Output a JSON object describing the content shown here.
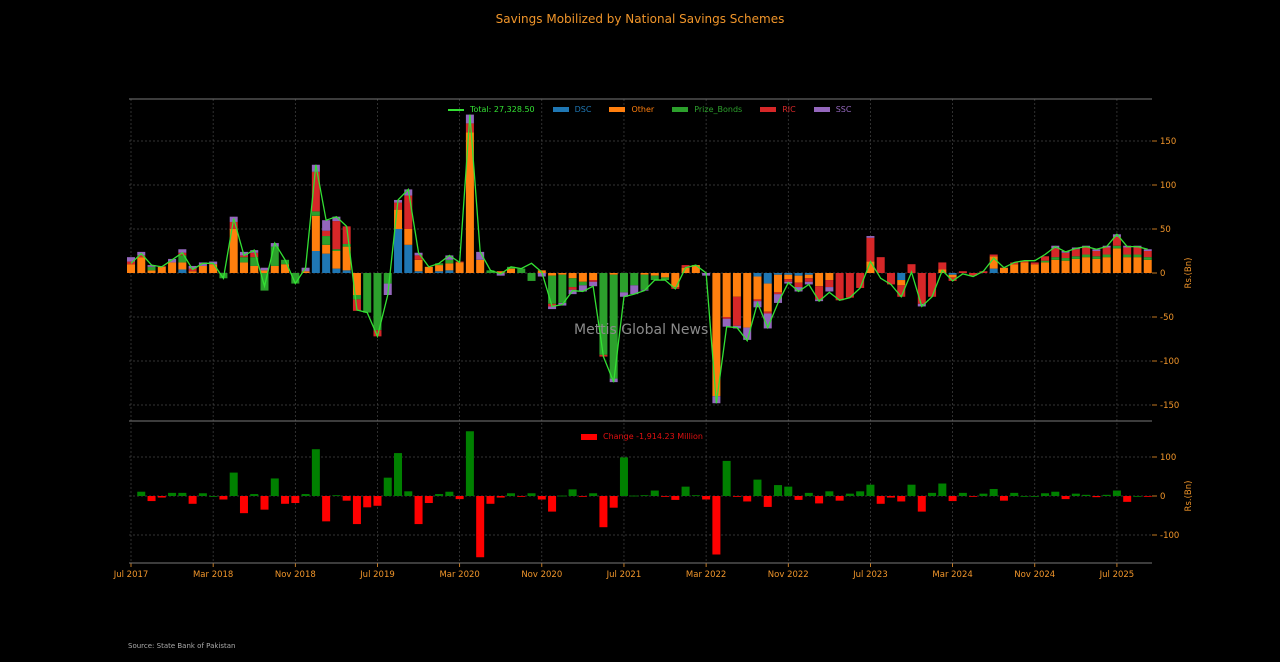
{
  "title": "Savings Mobilized by National Savings Schemes",
  "source": "Source: State Bank of Pakistan",
  "watermark": "Mettis Global News",
  "chart_data": [
    {
      "type": "bar",
      "stacked": true,
      "ylabel": "Rs.(Bn)",
      "ylim": [
        -160,
        195
      ],
      "yticks": [
        -150,
        -100,
        -50,
        0,
        50,
        100,
        150
      ],
      "grid": true,
      "legend": "top-center",
      "months": [
        "2017-07",
        "2017-08",
        "2017-09",
        "2017-10",
        "2017-11",
        "2017-12",
        "2018-01",
        "2018-02",
        "2018-03",
        "2018-04",
        "2018-05",
        "2018-06",
        "2018-07",
        "2018-08",
        "2018-09",
        "2018-10",
        "2018-11",
        "2018-12",
        "2019-01",
        "2019-02",
        "2019-03",
        "2019-04",
        "2019-05",
        "2019-06",
        "2019-07",
        "2019-08",
        "2019-09",
        "2019-10",
        "2019-11",
        "2019-12",
        "2020-01",
        "2020-02",
        "2020-03",
        "2020-04",
        "2020-05",
        "2020-06",
        "2020-07",
        "2020-08",
        "2020-09",
        "2020-10",
        "2020-11",
        "2020-12",
        "2021-01",
        "2021-02",
        "2021-03",
        "2021-04",
        "2021-05",
        "2021-06",
        "2021-07",
        "2021-08",
        "2021-09",
        "2021-10",
        "2021-11",
        "2021-12",
        "2022-01",
        "2022-02",
        "2022-03",
        "2022-04",
        "2022-05",
        "2022-06",
        "2022-07",
        "2022-08",
        "2022-09",
        "2022-10",
        "2022-11",
        "2022-12",
        "2023-01",
        "2023-02",
        "2023-03",
        "2023-04",
        "2023-05",
        "2023-06",
        "2023-07",
        "2023-08",
        "2023-09",
        "2023-10",
        "2023-11",
        "2023-12",
        "2024-01",
        "2024-02",
        "2024-03",
        "2024-04",
        "2024-05",
        "2024-06",
        "2024-07",
        "2024-08",
        "2024-09",
        "2024-10",
        "2024-11",
        "2024-12",
        "2025-01",
        "2025-02",
        "2025-03",
        "2025-04",
        "2025-05",
        "2025-06",
        "2025-07",
        "2025-08",
        "2025-09",
        "2025-10"
      ],
      "xticks": [
        {
          "month_index": 0,
          "label": "Jul 2017"
        },
        {
          "month_index": 8,
          "label": "Mar 2018"
        },
        {
          "month_index": 16,
          "label": "Nov 2018"
        },
        {
          "month_index": 24,
          "label": "Jul 2019"
        },
        {
          "month_index": 32,
          "label": "Mar 2020"
        },
        {
          "month_index": 40,
          "label": "Nov 2020"
        },
        {
          "month_index": 48,
          "label": "Jul 2021"
        },
        {
          "month_index": 56,
          "label": "Mar 2022"
        },
        {
          "month_index": 64,
          "label": "Nov 2022"
        },
        {
          "month_index": 72,
          "label": "Jul 2023"
        },
        {
          "month_index": 80,
          "label": "Mar 2024"
        },
        {
          "month_index": 88,
          "label": "Nov 2024"
        },
        {
          "month_index": 96,
          "label": "Jul 2025"
        }
      ],
      "total": {
        "legend_label": "Total: 27,328.50",
        "color": "#33e033",
        "values": [
          11,
          22,
          9,
          7,
          15,
          23,
          4,
          11,
          11,
          -6,
          62,
          20,
          26,
          -15,
          34,
          15,
          -12,
          6,
          123,
          60,
          64,
          53,
          -42,
          -45,
          -72,
          -25,
          83,
          95,
          23,
          7,
          11,
          20,
          12,
          180,
          24,
          3,
          -1,
          7,
          5,
          11,
          1,
          -38,
          -36,
          -20,
          -21,
          -15,
          -95,
          -124,
          -27,
          -24,
          -20,
          -8,
          -8,
          -18,
          6,
          9,
          0,
          -148,
          -61,
          -62,
          -77,
          -34,
          -62,
          -34,
          -11,
          -21,
          -13,
          -32,
          -22,
          -31,
          -28,
          -17,
          13,
          -6,
          -13,
          -27,
          1,
          -38,
          -27,
          3,
          -9,
          -1,
          -4,
          2,
          17,
          6,
          12,
          14,
          14,
          21,
          30,
          24,
          28,
          30,
          27,
          30,
          44,
          30,
          30,
          27
        ]
      },
      "series": [
        {
          "name": "DSC",
          "color": "#1f77b4",
          "values": [
            0,
            0,
            0,
            0,
            0,
            4,
            0,
            0,
            0,
            0,
            0,
            0,
            0,
            0,
            0,
            0,
            0,
            0,
            25,
            22,
            5,
            3,
            0,
            0,
            0,
            0,
            50,
            32,
            2,
            0,
            2,
            3,
            0,
            0,
            0,
            0,
            0,
            0,
            0,
            0,
            0,
            0,
            0,
            0,
            0,
            0,
            0,
            0,
            0,
            0,
            0,
            0,
            0,
            0,
            0,
            0,
            0,
            0,
            0,
            0,
            0,
            -4,
            -12,
            -2,
            -2,
            -3,
            -2,
            0,
            0,
            0,
            0,
            0,
            0,
            0,
            0,
            -8,
            0,
            0,
            0,
            0,
            -2,
            0,
            0,
            0,
            5,
            0,
            0,
            0,
            0,
            0,
            0,
            0,
            0,
            0,
            0,
            0,
            0,
            0,
            0,
            0
          ]
        },
        {
          "name": "Other",
          "color": "#ff7f0e",
          "values": [
            10,
            18,
            3,
            7,
            12,
            8,
            2,
            8,
            10,
            0,
            50,
            12,
            8,
            3,
            8,
            10,
            0,
            2,
            40,
            10,
            20,
            27,
            -25,
            0,
            0,
            0,
            22,
            18,
            13,
            7,
            7,
            8,
            12,
            160,
            15,
            0,
            2,
            5,
            0,
            0,
            3,
            -3,
            -2,
            -6,
            -10,
            -8,
            0,
            -2,
            0,
            0,
            -2,
            -3,
            -5,
            -16,
            6,
            9,
            0,
            -140,
            -50,
            -27,
            -62,
            -26,
            -32,
            -20,
            -5,
            -8,
            -4,
            -15,
            -8,
            0,
            0,
            0,
            13,
            0,
            0,
            -6,
            0,
            0,
            0,
            4,
            -3,
            0,
            0,
            0,
            14,
            6,
            10,
            12,
            10,
            12,
            15,
            14,
            16,
            18,
            16,
            18,
            28,
            18,
            18,
            15
          ]
        },
        {
          "name": "Prize_Bonds",
          "color": "#2ca02c",
          "values": [
            0,
            0,
            4,
            0,
            0,
            8,
            0,
            0,
            0,
            -6,
            0,
            6,
            10,
            -20,
            22,
            5,
            -12,
            0,
            5,
            10,
            2,
            3,
            -5,
            -45,
            -65,
            -12,
            0,
            0,
            0,
            0,
            2,
            4,
            0,
            0,
            0,
            3,
            0,
            2,
            5,
            -9,
            0,
            -32,
            -32,
            -10,
            -4,
            0,
            -93,
            -118,
            -22,
            -14,
            -17,
            -5,
            -3,
            0,
            0,
            0,
            0,
            0,
            0,
            0,
            0,
            0,
            0,
            0,
            0,
            0,
            0,
            0,
            0,
            0,
            0,
            0,
            0,
            0,
            0,
            0,
            0,
            0,
            0,
            0,
            0,
            0,
            0,
            0,
            0,
            0,
            0,
            0,
            0,
            2,
            3,
            3,
            3,
            3,
            3,
            3,
            3,
            3,
            3,
            3
          ]
        },
        {
          "name": "RIC",
          "color": "#d62728",
          "values": [
            3,
            2,
            0,
            1,
            0,
            3,
            3,
            0,
            0,
            0,
            8,
            2,
            5,
            0,
            0,
            0,
            0,
            0,
            45,
            6,
            32,
            20,
            -13,
            0,
            -7,
            0,
            8,
            38,
            5,
            0,
            0,
            0,
            1,
            10,
            0,
            0,
            0,
            0,
            0,
            0,
            0,
            -3,
            0,
            -3,
            0,
            -2,
            -2,
            0,
            0,
            0,
            0,
            0,
            0,
            -2,
            3,
            0,
            0,
            0,
            -2,
            -33,
            0,
            -2,
            -2,
            -2,
            -3,
            -5,
            -4,
            -15,
            -8,
            -31,
            -28,
            -17,
            27,
            18,
            -13,
            -13,
            10,
            -35,
            -27,
            8,
            -4,
            2,
            -3,
            2,
            2,
            0,
            2,
            2,
            2,
            5,
            10,
            6,
            8,
            8,
            6,
            8,
            10,
            8,
            8,
            7
          ]
        },
        {
          "name": "SSC",
          "color": "#9467bd",
          "values": [
            5,
            4,
            2,
            0,
            4,
            4,
            3,
            4,
            3,
            0,
            6,
            4,
            3,
            3,
            4,
            0,
            0,
            4,
            8,
            12,
            5,
            0,
            0,
            0,
            0,
            -13,
            3,
            7,
            3,
            0,
            0,
            5,
            0,
            10,
            9,
            0,
            -3,
            0,
            0,
            0,
            -4,
            -3,
            -3,
            -5,
            -7,
            -5,
            0,
            -4,
            -5,
            -10,
            -1,
            0,
            0,
            0,
            0,
            0,
            -3,
            -8,
            -9,
            -3,
            -14,
            -7,
            -17,
            -10,
            -2,
            -5,
            -3,
            -2,
            -5,
            0,
            0,
            0,
            2,
            0,
            0,
            0,
            0,
            -3,
            0,
            0,
            0,
            0,
            0,
            0,
            0,
            0,
            0,
            0,
            0,
            0,
            3,
            2,
            2,
            2,
            2,
            2,
            3,
            2,
            2,
            2
          ]
        }
      ]
    },
    {
      "type": "bar",
      "ylabel": "Rs.(Bn)",
      "ylim": [
        -175,
        190
      ],
      "yticks": [
        -100,
        0,
        100
      ],
      "grid": true,
      "legend": "top-center",
      "series_name": "Change -1,914.23 Million",
      "positive_color": "#008000",
      "negative_color": "#ff0000",
      "values": [
        null,
        11,
        -13,
        -4,
        8,
        8,
        -20,
        7,
        0,
        -9,
        60,
        -44,
        5,
        -35,
        45,
        -20,
        -18,
        5,
        120,
        -65,
        2,
        -12,
        -72,
        -29,
        -25,
        47,
        110,
        12,
        -72,
        -18,
        5,
        11,
        -8,
        166,
        -157,
        -20,
        -4,
        7,
        -2,
        7,
        -9,
        -40,
        1,
        17,
        -2,
        7,
        -80,
        -30,
        99,
        1,
        2,
        14,
        -2,
        -10,
        24,
        2,
        -9,
        -150,
        90,
        -2,
        -14,
        42,
        -28,
        28,
        24,
        -10,
        8,
        -19,
        12,
        -12,
        6,
        12,
        29,
        -20,
        -4,
        -14,
        29,
        -40,
        8,
        32,
        -13,
        8,
        -2,
        6,
        18,
        -12,
        8,
        0,
        0,
        7,
        11,
        -8,
        6,
        3,
        -3,
        3,
        14,
        -15,
        0,
        -2
      ]
    }
  ]
}
